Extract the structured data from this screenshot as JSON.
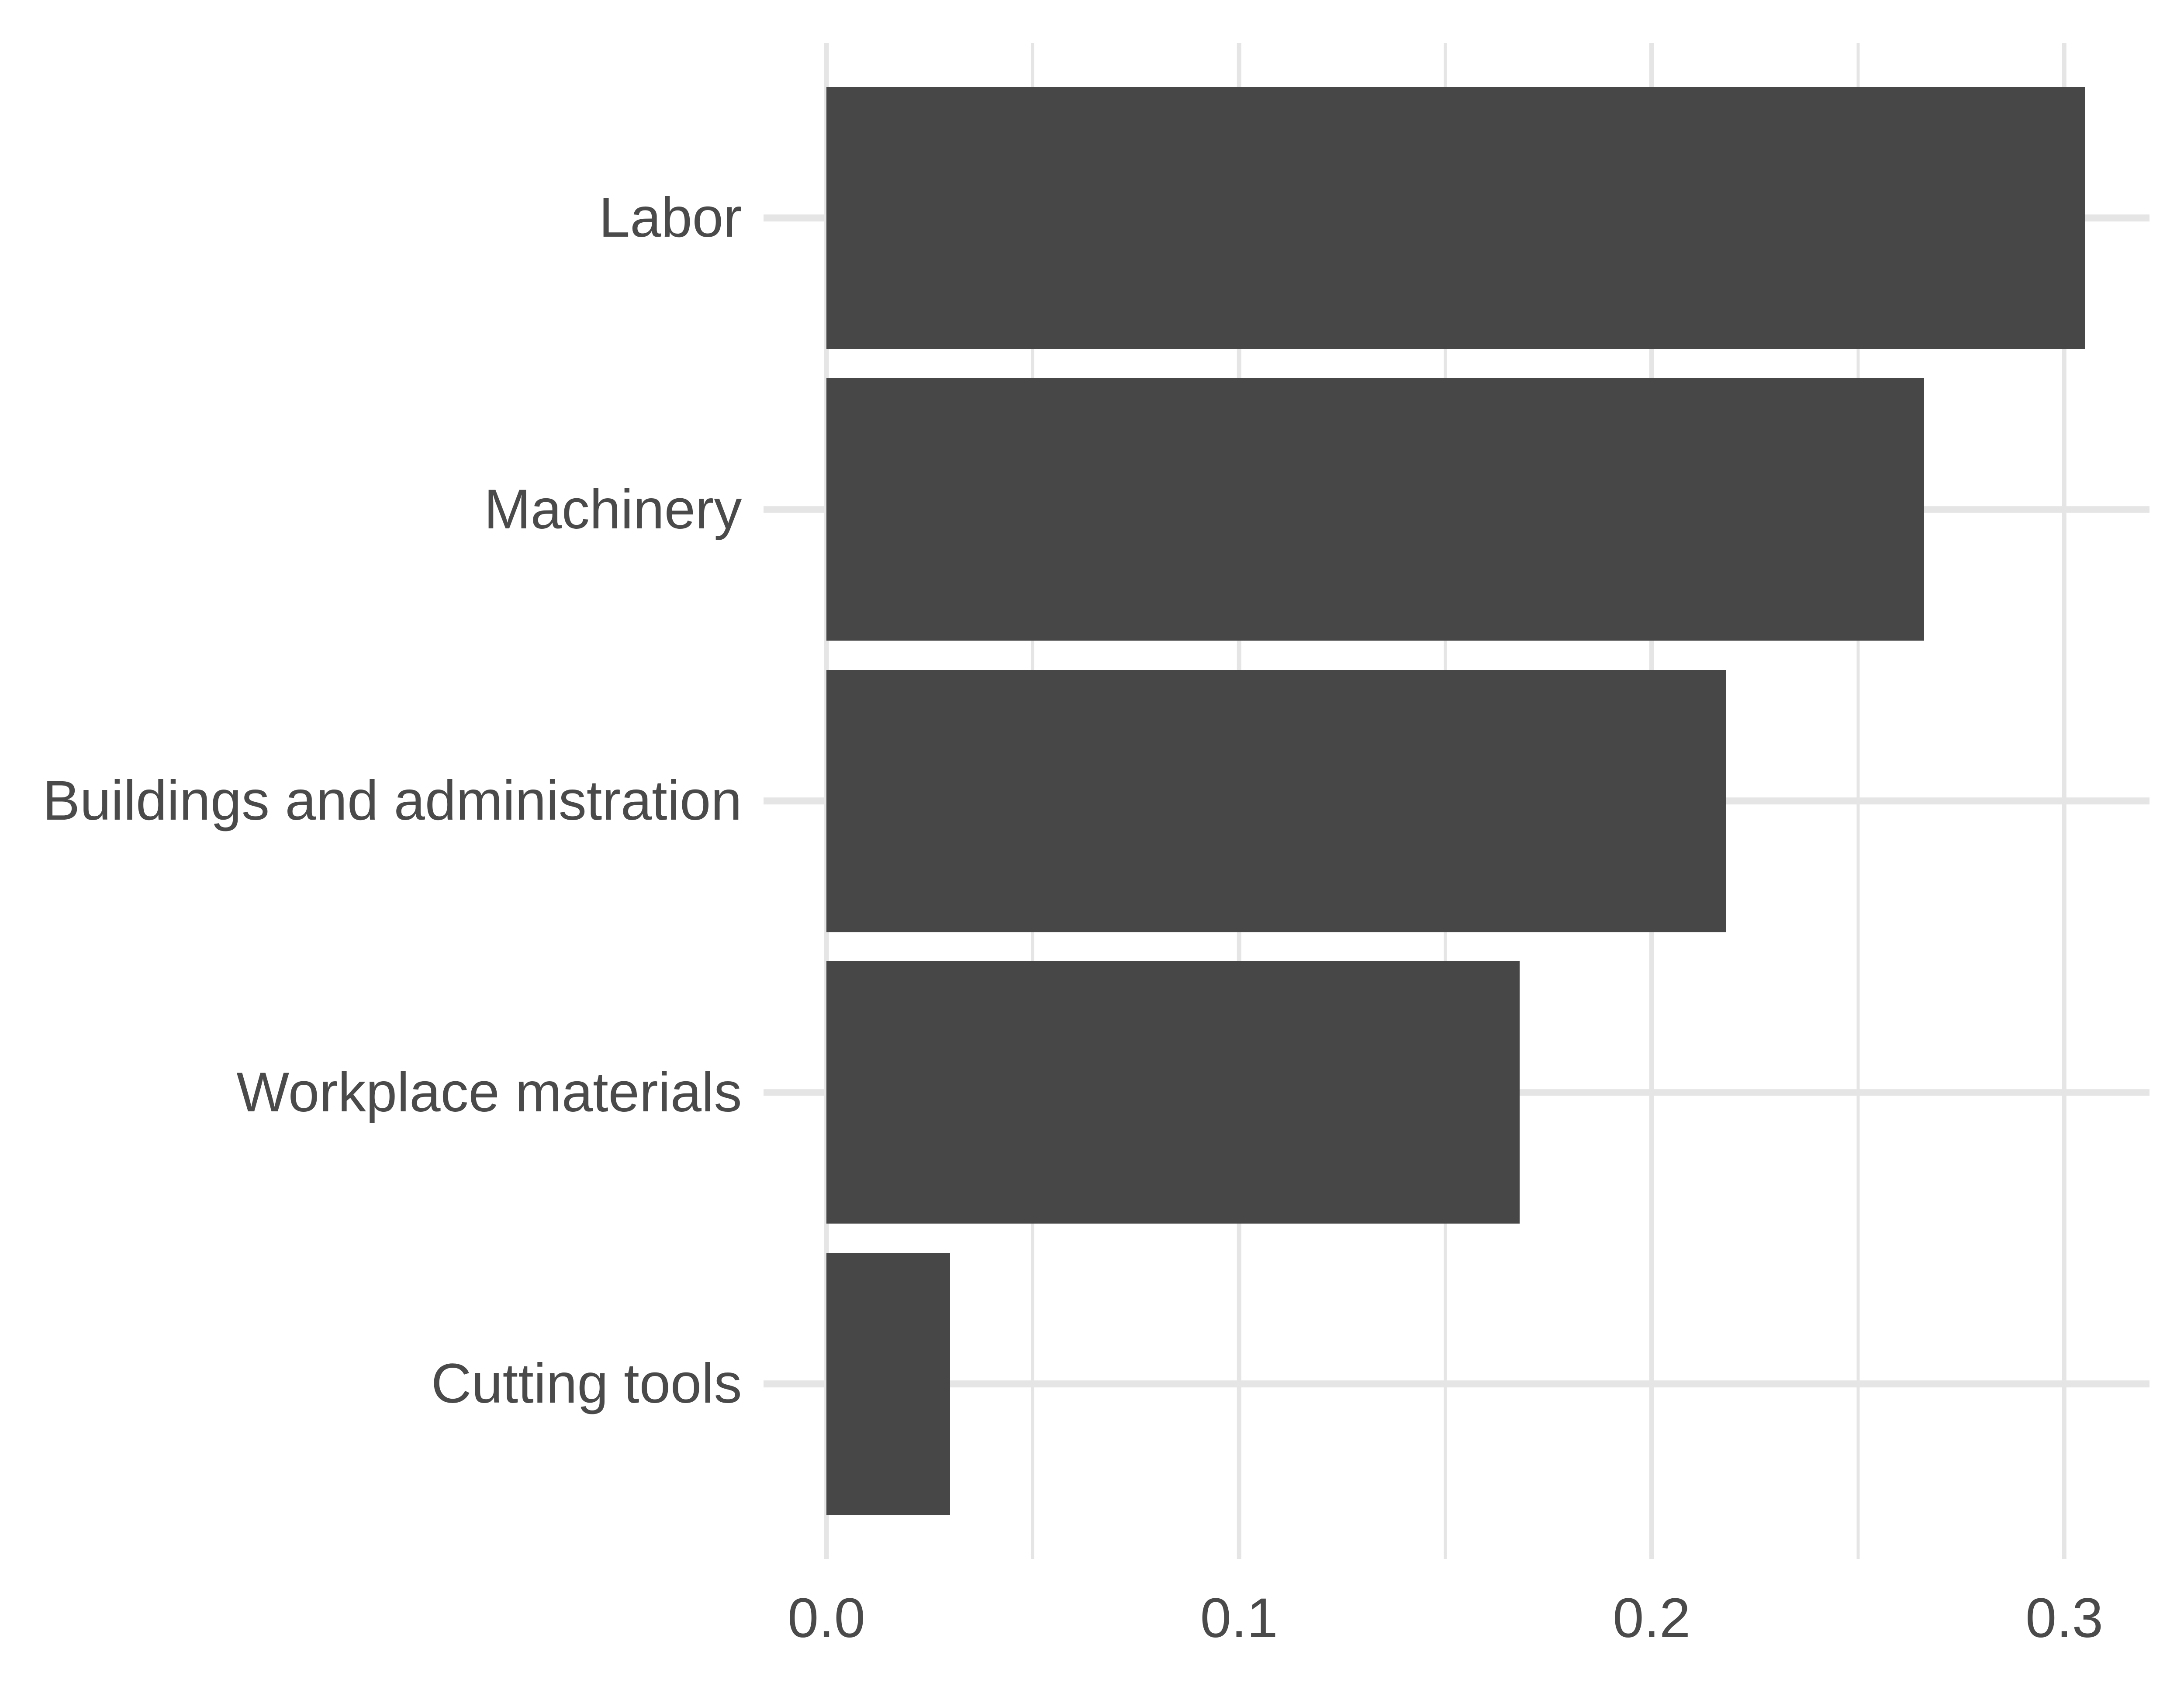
{
  "figure": {
    "background": "#ffffff"
  },
  "chart_data": {
    "type": "bar",
    "orientation": "horizontal",
    "title": "",
    "xlabel": "",
    "ylabel": "",
    "categories": [
      "Labor",
      "Machinery",
      "Buildings and administration",
      "Workplace materials",
      "Cutting tools"
    ],
    "values": [
      0.305,
      0.266,
      0.218,
      0.168,
      0.03
    ],
    "x_tick_values": [
      0.0,
      0.1,
      0.2,
      0.3
    ],
    "x_tick_labels": [
      "0.0",
      "0.1",
      "0.2",
      "0.3"
    ],
    "x_minor_grid_values": [
      0.05,
      0.15,
      0.25
    ],
    "xlim": [
      -0.0153,
      0.3206
    ],
    "grid": "on",
    "legend": "none",
    "bar_color": "#474747",
    "grid_color": "#e5e5e5",
    "text_color": "#4a4a4a",
    "background_color": "#ffffff"
  }
}
